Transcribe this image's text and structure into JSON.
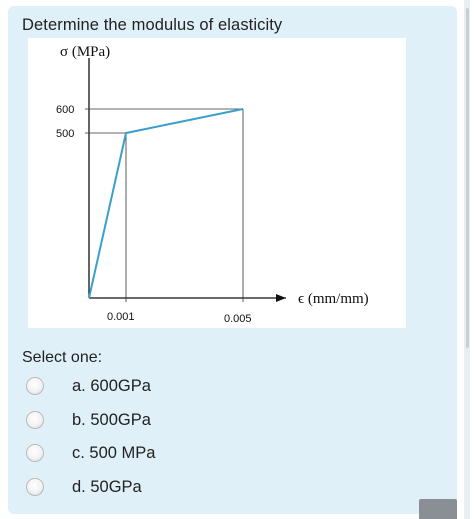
{
  "question": {
    "text": "Determine the modulus of elasticity"
  },
  "figure": {
    "y_axis_label": "σ (MPa)",
    "x_axis_label": "ϵ (mm/mm)",
    "y_ticks": [
      "600",
      "500"
    ],
    "x_ticks": [
      "0.001",
      "0.005"
    ],
    "line_color": "#3a9fcc",
    "axis_color": "#111111"
  },
  "chart_data": {
    "type": "line",
    "xlabel": "ϵ (mm/mm)",
    "ylabel": "σ (MPa)",
    "x": [
      0,
      0.001,
      0.005
    ],
    "y": [
      0,
      500,
      600
    ],
    "xlim": [
      0,
      0.006
    ],
    "ylim": [
      0,
      700
    ],
    "grid": false,
    "guides": [
      {
        "axis": "y",
        "value": 500
      },
      {
        "axis": "y",
        "value": 600
      },
      {
        "axis": "x",
        "value": 0.001
      },
      {
        "axis": "x",
        "value": 0.005
      }
    ]
  },
  "answers": {
    "prompt": "Select one:",
    "options": [
      {
        "label": "a. 600GPa",
        "selected": false
      },
      {
        "label": "b. 500GPa",
        "selected": false
      },
      {
        "label": "c. 500 MPa",
        "selected": false
      },
      {
        "label": "d. 50GPa",
        "selected": false
      }
    ]
  }
}
